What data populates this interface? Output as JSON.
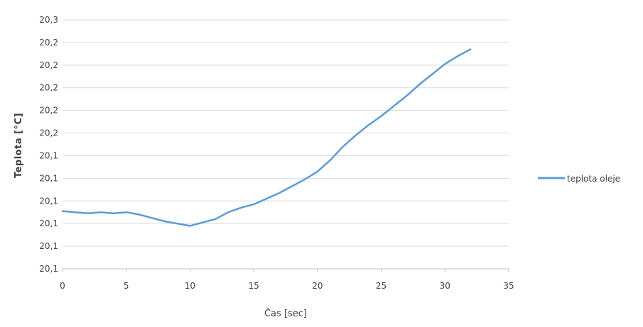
{
  "chart_data": {
    "type": "line",
    "title": "",
    "xlabel": "Čas [sec]",
    "ylabel": "Teplota [°C]",
    "xlim": [
      0,
      35
    ],
    "x_ticks": [
      "0",
      "5",
      "10",
      "15",
      "20",
      "25",
      "30",
      "35"
    ],
    "y_ticks": [
      "20,1",
      "20,1",
      "20,1",
      "20,1",
      "20,1",
      "20,1",
      "20,2",
      "20,2",
      "20,2",
      "20,2",
      "20,2",
      "20,3"
    ],
    "ylim": [
      20.08,
      20.3
    ],
    "grid": true,
    "legend_position": "right",
    "series": [
      {
        "name": "teplota oleje",
        "color": "#5b9bd5",
        "x": [
          0,
          1,
          2,
          3,
          4,
          5,
          6,
          7,
          8,
          9,
          10,
          11,
          12,
          13,
          14,
          15,
          16,
          17,
          18,
          19,
          20,
          21,
          22,
          23,
          24,
          25,
          26,
          27,
          28,
          29,
          30,
          31,
          32
        ],
        "y": [
          20.131,
          20.13,
          20.129,
          20.13,
          20.129,
          20.13,
          20.128,
          20.125,
          20.122,
          20.12,
          20.118,
          20.121,
          20.124,
          20.13,
          20.134,
          20.137,
          20.142,
          20.147,
          20.153,
          20.159,
          20.166,
          20.176,
          20.188,
          20.198,
          20.207,
          20.215,
          20.224,
          20.233,
          20.243,
          20.252,
          20.261,
          20.268,
          20.274
        ]
      }
    ]
  }
}
